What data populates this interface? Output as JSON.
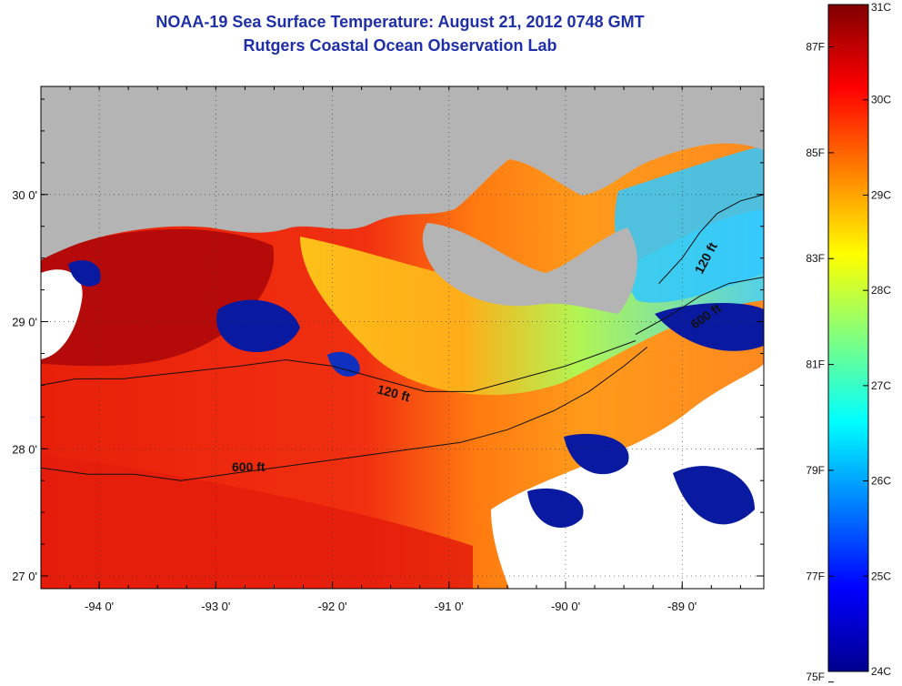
{
  "title": {
    "line1": "NOAA-19 Sea Surface Temperature:  August 21, 2012 0748 GMT",
    "line2": "Rutgers Coastal Ocean Observation Lab"
  },
  "map": {
    "lon_range": [
      -94.5,
      -88.3
    ],
    "lat_range": [
      26.9,
      30.85
    ],
    "lon_ticks": [
      {
        "value": -94,
        "label": "-94 0'"
      },
      {
        "value": -93,
        "label": "-93 0'"
      },
      {
        "value": -92,
        "label": "-92 0'"
      },
      {
        "value": -91,
        "label": "-91 0'"
      },
      {
        "value": -90,
        "label": "-90 0'"
      },
      {
        "value": -89,
        "label": "-89 0'"
      }
    ],
    "lat_ticks": [
      {
        "value": 27,
        "label": "27 0'"
      },
      {
        "value": 28,
        "label": "28 0'"
      },
      {
        "value": 29,
        "label": "29 0'"
      },
      {
        "value": 30,
        "label": "30 0'"
      }
    ],
    "contours": [
      {
        "name": "120 ft",
        "label": "120 ft"
      },
      {
        "name": "600 ft",
        "label": "600 ft"
      },
      {
        "name": "120 ft east",
        "label": "120 ft"
      },
      {
        "name": "600 ft east",
        "label": "600 ft"
      }
    ],
    "land_color": "#b4b4b4",
    "no_data_color": "#ffffff"
  },
  "colorbar": {
    "celsius": [
      {
        "value": 31,
        "label": "31C"
      },
      {
        "value": 30,
        "label": "30C"
      },
      {
        "value": 29,
        "label": "29C"
      },
      {
        "value": 28,
        "label": "28C"
      },
      {
        "value": 27,
        "label": "27C"
      },
      {
        "value": 26,
        "label": "26C"
      },
      {
        "value": 25,
        "label": "25C"
      },
      {
        "value": 24,
        "label": "24C"
      }
    ],
    "fahrenheit": [
      {
        "value": 87,
        "label": "87F"
      },
      {
        "value": 85,
        "label": "85F"
      },
      {
        "value": 83,
        "label": "83F"
      },
      {
        "value": 81,
        "label": "81F"
      },
      {
        "value": 79,
        "label": "79F"
      },
      {
        "value": 77,
        "label": "77F"
      },
      {
        "value": 75,
        "label": "75F"
      }
    ],
    "range_c": [
      24,
      31
    ],
    "colors": [
      "#00008f",
      "#0000ff",
      "#0080ff",
      "#00ffff",
      "#80ff80",
      "#ffff00",
      "#ff8000",
      "#ff0000",
      "#800000"
    ]
  }
}
